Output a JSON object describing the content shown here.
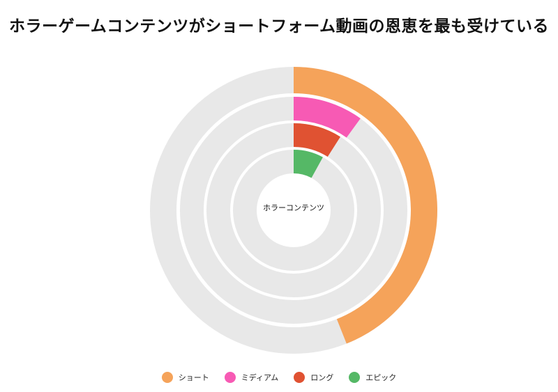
{
  "chart_data": {
    "type": "radial-bar",
    "title": "ホラーゲームコンテンツがショートフォーム動画の恩恵を最も受けている",
    "center_label": "ホラーコンテンツ",
    "max_value": 100,
    "track_color": "#e8e8e8",
    "series": [
      {
        "name": "ショート",
        "value": 44,
        "color": "#f5a35a"
      },
      {
        "name": "ミディアム",
        "value": 10,
        "color": "#f75ab4"
      },
      {
        "name": "ロング",
        "value": 9,
        "color": "#e05232"
      },
      {
        "name": "エピック",
        "value": 8,
        "color": "#55b866"
      }
    ]
  }
}
